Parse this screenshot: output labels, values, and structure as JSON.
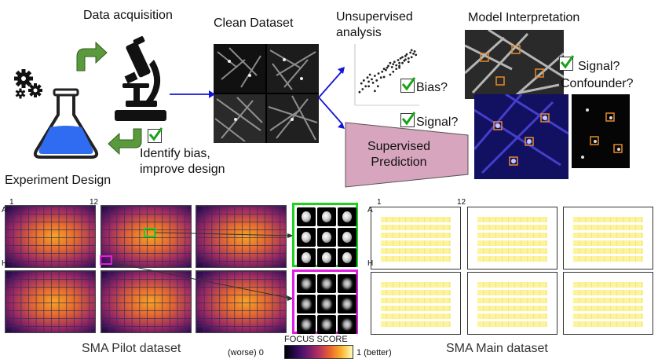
{
  "top": {
    "data_acquisition": "Data acquisition",
    "clean_dataset": "Clean Dataset",
    "unsupervised": "Unsupervised\nanalysis",
    "model_interpretation": "Model Interpretation",
    "experiment_design": "Experiment Design",
    "identify_bias": "Identify bias,\nimprove design",
    "bias_q": "Bias?",
    "signal_q": "Signal?",
    "supervised": "Supervised\nPrediction",
    "interp_q": "Signal?\nConfounder?"
  },
  "bottom": {
    "row_label_a": "A",
    "row_label_h": "H",
    "col_label_1": "1",
    "col_label_12": "12",
    "main_row_label_a": "A",
    "main_row_label_h": "H",
    "main_col_label_1": "1",
    "main_col_label_12": "12",
    "pilot_title": "SMA Pilot dataset",
    "main_title": "SMA Main dataset",
    "focus_title": "FOCUS SCORE",
    "focus_worse": "(worse) 0",
    "focus_better": "1 (better)"
  },
  "colors": {
    "arrow_green": "#5b9a3c",
    "arrow_blue": "#1414d6",
    "prediction_fill": "#d7a5bd",
    "flask_liquid": "#2f6cf2",
    "highlight_green": "#1fd11f",
    "highlight_magenta": "#e020e0",
    "well_yellow": "#fdf39a"
  },
  "chart_data": {
    "type": "scatter",
    "x": [
      0.05,
      0.08,
      0.1,
      0.12,
      0.15,
      0.18,
      0.2,
      0.22,
      0.25,
      0.27,
      0.3,
      0.33,
      0.36,
      0.4,
      0.42,
      0.45,
      0.48,
      0.5,
      0.52,
      0.55,
      0.58,
      0.6,
      0.62,
      0.65,
      0.68,
      0.7,
      0.72,
      0.75,
      0.78,
      0.8,
      0.82,
      0.85,
      0.88,
      0.9,
      0.93,
      0.95,
      0.97,
      0.6,
      0.65,
      0.7,
      0.75,
      0.8,
      0.55,
      0.45,
      0.35,
      0.85,
      0.9,
      0.3,
      0.2,
      0.7
    ],
    "y": [
      0.2,
      0.35,
      0.25,
      0.4,
      0.3,
      0.45,
      0.38,
      0.5,
      0.42,
      0.36,
      0.48,
      0.4,
      0.52,
      0.45,
      0.55,
      0.6,
      0.58,
      0.62,
      0.65,
      0.7,
      0.63,
      0.68,
      0.72,
      0.66,
      0.75,
      0.7,
      0.78,
      0.8,
      0.74,
      0.82,
      0.85,
      0.78,
      0.88,
      0.8,
      0.86,
      0.9,
      0.84,
      0.55,
      0.6,
      0.62,
      0.7,
      0.76,
      0.5,
      0.46,
      0.3,
      0.72,
      0.92,
      0.22,
      0.3,
      0.65
    ]
  }
}
